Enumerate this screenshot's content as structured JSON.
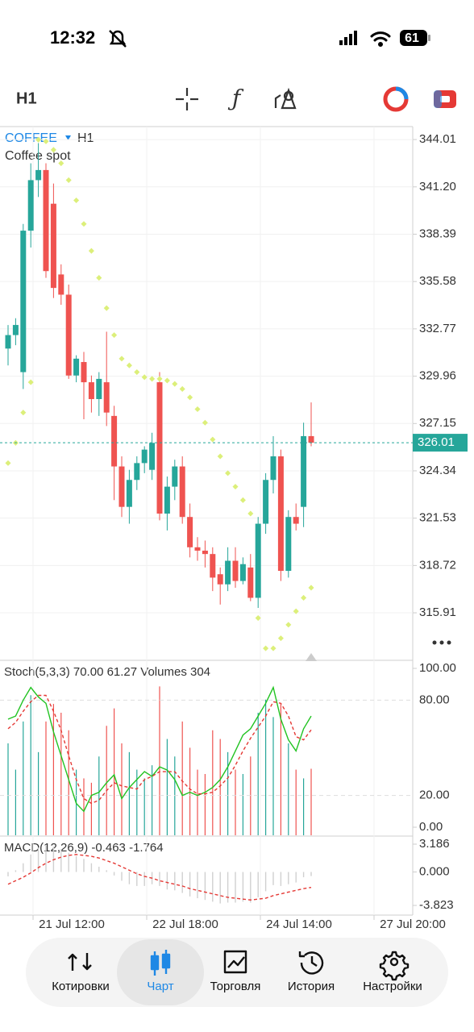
{
  "status": {
    "time": "12:32",
    "battery": "61"
  },
  "toolbar": {
    "timeframe": "H1"
  },
  "chart_data": [
    {
      "type": "candlestick",
      "symbol": "COFFEE",
      "timeframe": "H1",
      "description": "Coffee spot",
      "open": [
        331.6,
        332.4,
        330.2,
        338.6,
        341.6,
        342.2,
        340.2,
        336.0,
        334.8,
        330.0,
        330.8,
        329.6,
        328.6,
        329.6,
        327.6,
        324.6,
        322.2,
        323.8,
        324.8,
        324.4,
        329.6,
        321.8,
        323.4,
        324.6,
        321.6,
        319.8,
        319.6,
        319.4,
        318.2,
        317.6,
        319.0,
        317.8,
        318.6,
        316.8,
        321.2,
        323.8,
        325.2,
        318.4,
        321.6,
        322.2,
        326.4
      ],
      "high": [
        333.0,
        333.4,
        339.0,
        342.6,
        343.8,
        342.6,
        341.4,
        336.6,
        335.4,
        331.2,
        331.4,
        330.0,
        330.2,
        332.6,
        328.2,
        325.2,
        324.4,
        325.2,
        325.8,
        326.6,
        330.2,
        324.0,
        325.0,
        325.2,
        322.4,
        320.4,
        320.2,
        319.8,
        318.6,
        319.8,
        319.8,
        319.2,
        319.4,
        321.6,
        324.2,
        326.4,
        325.6,
        322.0,
        322.4,
        327.2,
        328.4
      ],
      "low": [
        330.6,
        331.8,
        329.2,
        337.6,
        340.6,
        335.8,
        334.6,
        334.2,
        329.8,
        329.6,
        327.4,
        327.8,
        327.6,
        327.0,
        322.6,
        321.6,
        321.2,
        323.2,
        324.2,
        323.8,
        321.4,
        320.8,
        322.6,
        321.2,
        319.2,
        319.0,
        318.6,
        317.2,
        316.4,
        317.2,
        317.4,
        317.6,
        316.6,
        316.2,
        320.6,
        323.0,
        317.8,
        318.0,
        320.8,
        321.0,
        325.8
      ],
      "close": [
        332.4,
        333.0,
        338.6,
        341.6,
        342.2,
        336.2,
        335.2,
        334.8,
        330.0,
        331.0,
        329.6,
        328.6,
        329.8,
        327.8,
        324.6,
        322.2,
        323.8,
        324.8,
        325.6,
        326.0,
        321.8,
        323.4,
        324.6,
        321.6,
        319.8,
        319.6,
        319.4,
        318.0,
        317.6,
        319.0,
        317.8,
        318.8,
        316.8,
        321.2,
        323.8,
        325.2,
        318.4,
        321.6,
        321.2,
        326.4,
        326.01
      ],
      "sar": [
        324.8,
        326.0,
        327.8,
        329.6,
        344.0,
        343.9,
        343.4,
        342.6,
        341.6,
        340.4,
        339.0,
        337.4,
        335.8,
        334.0,
        332.4,
        331.0,
        330.6,
        330.2,
        329.9,
        329.8,
        329.8,
        329.7,
        329.5,
        329.2,
        328.7,
        328.0,
        327.2,
        326.2,
        325.2,
        324.2,
        323.4,
        322.6,
        321.8,
        315.6,
        313.8,
        313.8,
        314.4,
        315.2,
        316.0,
        316.8,
        317.4
      ],
      "current_price": 326.01,
      "up_color": "#26a69a",
      "down_color": "#ef5350",
      "sar_color": "#dcef7a",
      "ylim": [
        313.28,
        344.78
      ],
      "yticks": [
        344.01,
        {
          "value": 341.2,
          "label": "341.20"
        },
        338.39,
        335.58,
        332.77,
        329.96,
        327.15,
        324.34,
        321.53,
        318.72,
        315.91
      ],
      "grid": true
    },
    {
      "type": "stoch",
      "legend": "Stoch(5,3,3) 70.00 61.27 Volumes 304",
      "k": [
        68,
        70,
        80,
        88,
        82,
        78,
        60,
        45,
        30,
        15,
        10,
        20,
        22,
        28,
        33,
        18,
        25,
        30,
        35,
        32,
        38,
        36,
        30,
        20,
        22,
        20,
        22,
        25,
        30,
        38,
        48,
        58,
        62,
        70,
        78,
        88,
        68,
        55,
        48,
        62,
        70
      ],
      "d": [
        62,
        66,
        73,
        79,
        83,
        83,
        73,
        61,
        45,
        30,
        18,
        15,
        17,
        23,
        28,
        26,
        25,
        24,
        30,
        32,
        35,
        35,
        35,
        29,
        24,
        21,
        21,
        22,
        26,
        31,
        39,
        48,
        56,
        63,
        70,
        79,
        78,
        70,
        57,
        55,
        61.27
      ],
      "volumes": [
        420,
        300,
        520,
        640,
        380,
        520,
        600,
        560,
        480,
        300,
        260,
        240,
        360,
        500,
        580,
        420,
        380,
        300,
        260,
        320,
        680,
        440,
        360,
        520,
        400,
        300,
        280,
        480,
        440,
        380,
        300,
        280,
        360,
        560,
        620,
        540,
        600,
        420,
        300,
        260,
        304
      ],
      "k_color": "#22c322",
      "d_color": "#e53935",
      "ylim": [
        0,
        100
      ],
      "volume_lim": [
        0,
        700
      ],
      "yticks": [
        {
          "value": 100,
          "label": "100.00"
        },
        {
          "value": 80,
          "label": "80.00"
        },
        {
          "value": 20,
          "label": "20.00"
        },
        {
          "value": 0,
          "label": "0.00"
        }
      ]
    },
    {
      "type": "macd",
      "legend": "MACD(12,26,9) -0.463 -1.764",
      "histogram": [
        -0.5,
        0.2,
        1.0,
        2.0,
        2.8,
        3.0,
        2.9,
        2.6,
        2.2,
        1.8,
        1.5,
        1.0,
        0.6,
        0.2,
        -0.4,
        -1.0,
        -1.4,
        -1.6,
        -1.6,
        -1.4,
        -1.6,
        -2.0,
        -2.1,
        -2.4,
        -2.8,
        -3.0,
        -3.2,
        -3.4,
        -3.6,
        -3.5,
        -3.5,
        -3.4,
        -3.5,
        -2.9,
        -2.2,
        -1.5,
        -1.6,
        -1.4,
        -1.2,
        -0.6,
        -0.463
      ],
      "signal": [
        -1.4,
        -1.0,
        -0.6,
        -0.1,
        0.5,
        1.0,
        1.4,
        1.7,
        1.9,
        2.0,
        1.9,
        1.8,
        1.6,
        1.3,
        1.0,
        0.6,
        0.2,
        -0.2,
        -0.5,
        -0.7,
        -1.0,
        -1.2,
        -1.4,
        -1.6,
        -1.9,
        -2.1,
        -2.3,
        -2.5,
        -2.7,
        -2.9,
        -3.0,
        -3.1,
        -3.2,
        -3.1,
        -3.0,
        -2.7,
        -2.5,
        -2.3,
        -2.1,
        -1.9,
        -1.764
      ],
      "hist_color": "#d0d0d0",
      "signal_color": "#e53935",
      "ylim": [
        -3.823,
        3.186
      ],
      "yticks": [
        3.186,
        {
          "value": 0,
          "label": "0.000"
        },
        -3.823
      ]
    }
  ],
  "time_labels": [
    "21 Jul 12:00",
    "22 Jul 18:00",
    "24 Jul 14:00",
    "27 Jul 20:00"
  ],
  "nav": [
    "Котировки",
    "Чарт",
    "Торговля",
    "История",
    "Настройки"
  ],
  "active_nav": 1
}
